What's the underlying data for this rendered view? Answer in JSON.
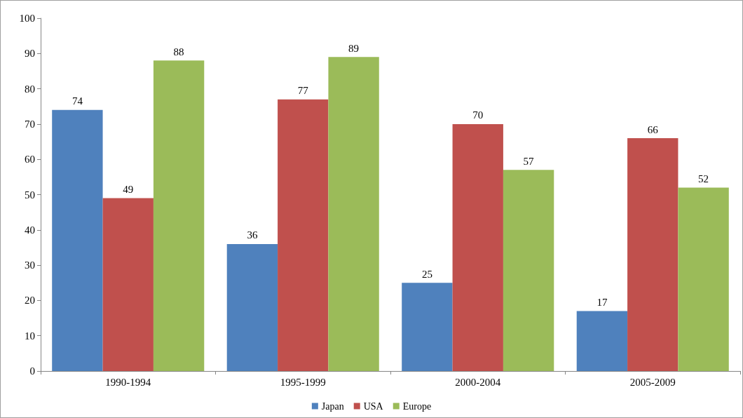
{
  "chart_data": {
    "type": "bar",
    "categories": [
      "1990-1994",
      "1995-1999",
      "2000-2004",
      "2005-2009"
    ],
    "series": [
      {
        "name": "Japan",
        "color": "#4f81bd",
        "values": [
          74,
          36,
          25,
          17
        ]
      },
      {
        "name": "USA",
        "color": "#c0504d",
        "values": [
          49,
          77,
          70,
          66
        ]
      },
      {
        "name": "Europe",
        "color": "#9bbb59",
        "values": [
          88,
          89,
          57,
          52
        ]
      }
    ],
    "ylim": [
      0,
      100
    ],
    "yticks": [
      0,
      10,
      20,
      30,
      40,
      50,
      60,
      70,
      80,
      90,
      100
    ],
    "grid": false,
    "legend": "bottom",
    "data_labels": true
  }
}
